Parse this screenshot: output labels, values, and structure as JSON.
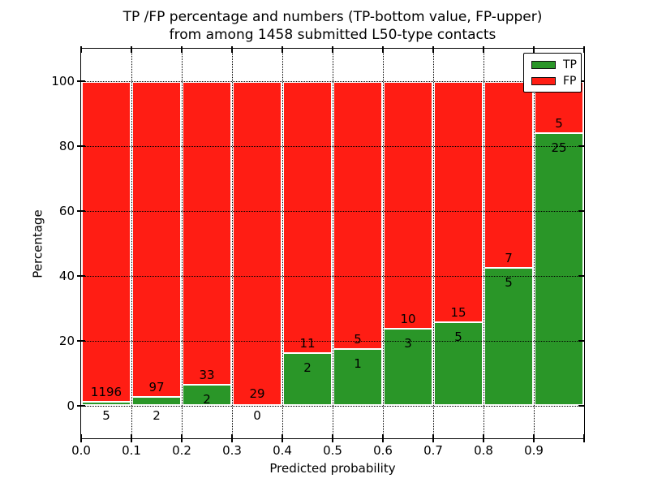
{
  "title": {
    "line1": "TP /FP percentage and numbers (TP-bottom value, FP-upper)",
    "line2": "from among 1458 submitted L50-type contacts"
  },
  "axes": {
    "xlabel": "Predicted probability",
    "ylabel": "Percentage",
    "x_tick_labels": [
      "0.0",
      "0.1",
      "0.2",
      "0.3",
      "0.4",
      "0.5",
      "0.6",
      "0.7",
      "0.8",
      "0.9"
    ],
    "y_tick_values": [
      0,
      20,
      40,
      60,
      80,
      100
    ],
    "xlim": [
      0.0,
      1.0
    ],
    "ylim": [
      -10,
      110
    ],
    "grid": "dotted black, drawn over bars"
  },
  "legend": {
    "position": "upper-right",
    "items": [
      {
        "label": "TP",
        "color": "#2a9628"
      },
      {
        "label": "FP",
        "color": "#ff1d14"
      }
    ]
  },
  "colors": {
    "tp": "#2a9628",
    "fp": "#ff1d14",
    "bar_edge": "#ffffff",
    "grid": "#000000",
    "text": "#000000",
    "background": "#ffffff"
  },
  "chart_data": {
    "type": "bar",
    "stacked": true,
    "normalized_to_percent": 100,
    "title": "TP /FP percentage and numbers (TP-bottom value, FP-upper) from among 1458 submitted L50-type contacts",
    "xlabel": "Predicted probability",
    "ylabel": "Percentage",
    "ylim": [
      -10,
      110
    ],
    "bin_width": 0.1,
    "bin_starts": [
      0.0,
      0.1,
      0.2,
      0.3,
      0.4,
      0.5,
      0.6,
      0.7,
      0.8,
      0.9
    ],
    "categories": [
      "0.0-0.1",
      "0.1-0.2",
      "0.2-0.3",
      "0.3-0.4",
      "0.4-0.5",
      "0.5-0.6",
      "0.6-0.7",
      "0.7-0.8",
      "0.8-0.9",
      "0.9-1.0"
    ],
    "series": [
      {
        "name": "TP",
        "counts": [
          5,
          2,
          2,
          0,
          2,
          1,
          3,
          5,
          5,
          25
        ],
        "pct": [
          0.42,
          2.02,
          5.71,
          0.0,
          15.38,
          16.67,
          23.08,
          25.0,
          41.67,
          83.33
        ]
      },
      {
        "name": "FP",
        "counts": [
          1196,
          97,
          33,
          29,
          11,
          5,
          10,
          15,
          7,
          5
        ],
        "pct": [
          99.58,
          97.98,
          94.29,
          100.0,
          84.62,
          83.33,
          76.92,
          75.0,
          58.33,
          16.67
        ]
      }
    ]
  }
}
